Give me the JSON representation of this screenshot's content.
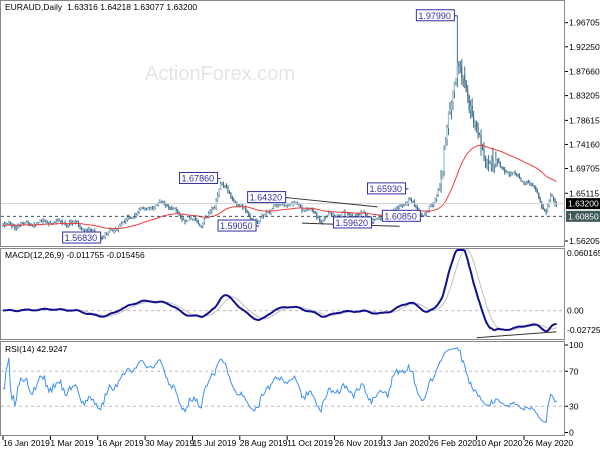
{
  "header": {
    "symbol": "EURAUD,Daily",
    "ohlc": "1.63316 1.64218 1.63077 1.63200"
  },
  "watermark": "ActionForex.com",
  "colors": {
    "candle": "#3f6f8c",
    "ma": "#f03c3c",
    "macd_main": "#101090",
    "macd_signal": "#c0c0c0",
    "rsi": "#3d8ff0",
    "label_border": "#3030a0",
    "current_price_bg": "#000000",
    "support_bg": "#3c5858"
  },
  "chart_data": [
    {
      "type": "candlestick",
      "title": "EURAUD,Daily 1.63316 1.64218 1.63077 1.63200",
      "ylim": [
        1.546,
        1.99
      ],
      "y_ticks": [
        "1.96705",
        "1.92250",
        "1.87660",
        "1.83205",
        "1.78615",
        "1.74160",
        "1.69705",
        "1.65115",
        "1.56205"
      ],
      "x_ticks": [
        {
          "bar": 0,
          "label": "16 Jan 2019"
        },
        {
          "bar": 32,
          "label": "1 Mar 2019"
        },
        {
          "bar": 64,
          "label": "16 Apr 2019"
        },
        {
          "bar": 96,
          "label": "30 May 2019"
        },
        {
          "bar": 128,
          "label": "15 Jul 2019"
        },
        {
          "bar": 160,
          "label": "28 Aug 2019"
        },
        {
          "bar": 192,
          "label": "11 Oct 2019"
        },
        {
          "bar": 224,
          "label": "26 Nov 2019"
        },
        {
          "bar": 256,
          "label": "13 Jan 2020"
        },
        {
          "bar": 288,
          "label": "26 Feb 2020"
        },
        {
          "bar": 320,
          "label": "10 Apr 2020"
        },
        {
          "bar": 352,
          "label": "26 May 2020"
        }
      ],
      "close_keypoints": [
        [
          0,
          1.59
        ],
        [
          26,
          1.598
        ],
        [
          48,
          1.597
        ],
        [
          59,
          1.58
        ],
        [
          68,
          1.572
        ],
        [
          80,
          1.593
        ],
        [
          93,
          1.62
        ],
        [
          111,
          1.633
        ],
        [
          120,
          1.606
        ],
        [
          134,
          1.596
        ],
        [
          143,
          1.626
        ],
        [
          147,
          1.672
        ],
        [
          156,
          1.639
        ],
        [
          170,
          1.602
        ],
        [
          173,
          1.598
        ],
        [
          179,
          1.62
        ],
        [
          193,
          1.634
        ],
        [
          206,
          1.62
        ],
        [
          215,
          1.602
        ],
        [
          224,
          1.614
        ],
        [
          242,
          1.611
        ],
        [
          251,
          1.6
        ],
        [
          260,
          1.607
        ],
        [
          274,
          1.64
        ],
        [
          284,
          1.61
        ],
        [
          291,
          1.632
        ],
        [
          296,
          1.68
        ],
        [
          301,
          1.79
        ],
        [
          304,
          1.84
        ],
        [
          307,
          1.895
        ],
        [
          311,
          1.86
        ],
        [
          314,
          1.83
        ],
        [
          318,
          1.785
        ],
        [
          322,
          1.75
        ],
        [
          326,
          1.722
        ],
        [
          333,
          1.708
        ],
        [
          340,
          1.692
        ],
        [
          347,
          1.682
        ],
        [
          353,
          1.672
        ],
        [
          360,
          1.66
        ],
        [
          364,
          1.63
        ],
        [
          367,
          1.614
        ],
        [
          370,
          1.645
        ],
        [
          374,
          1.632
        ]
      ],
      "annotations": [
        {
          "bar": 147,
          "price": 1.6786,
          "text": "1.67860",
          "side": "left"
        },
        {
          "bar": 173,
          "price": 1.5905,
          "text": "1.59050",
          "side": "left"
        },
        {
          "bar": 68,
          "price": 1.5683,
          "text": "1.56830",
          "side": "left"
        },
        {
          "bar": 193,
          "price": 1.6432,
          "text": "1.64320",
          "side": "left"
        },
        {
          "bar": 251,
          "price": 1.5962,
          "text": "1.59620",
          "side": "left"
        },
        {
          "bar": 274,
          "price": 1.6593,
          "text": "1.65930",
          "side": "left"
        },
        {
          "bar": 284,
          "price": 1.6085,
          "text": "1.60850",
          "side": "left"
        },
        {
          "bar": 307,
          "price": 1.9799,
          "text": "1.97990",
          "side": "left"
        }
      ],
      "trendlines": [
        {
          "from": [
            192,
            1.643
          ],
          "to": [
            253,
            1.626
          ]
        },
        {
          "from": [
            202,
            1.596
          ],
          "to": [
            268,
            1.59
          ]
        }
      ],
      "moving_average_period": 55,
      "current_price": "1.63200",
      "support_level": "1.60850"
    },
    {
      "type": "line",
      "title": "MACD(12,26,9) -0.011755 -0.015456",
      "ylim": [
        -0.02725,
        0.060165
      ],
      "y_ticks": [
        "0.060165",
        "0.00",
        "-0.02725"
      ],
      "series": [
        {
          "name": "MACD main"
        },
        {
          "name": "Signal"
        }
      ],
      "trendline": {
        "from": [
          320,
          -0.027
        ],
        "to": [
          374,
          -0.021
        ]
      }
    },
    {
      "type": "line",
      "title": "RSI(14) 42.9247",
      "ylim": [
        0,
        100
      ],
      "y_ticks": [
        "100",
        "70",
        "30",
        "0"
      ],
      "levels": [
        70,
        30
      ]
    }
  ]
}
